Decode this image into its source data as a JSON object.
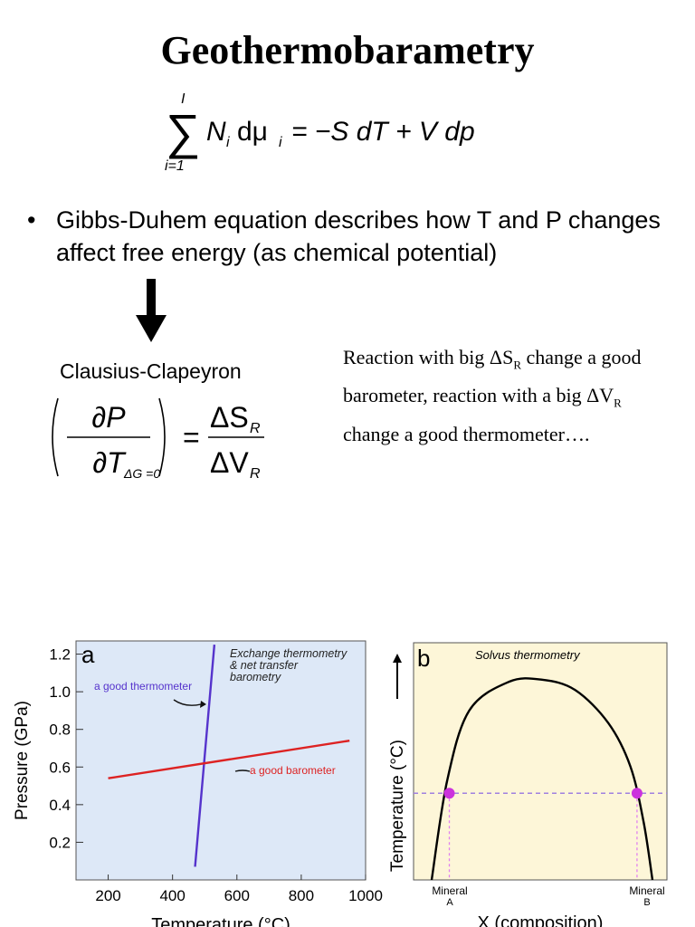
{
  "title": "Geothermobarametry",
  "gibbs_duhem_equation": {
    "sum_upper": "I",
    "sum_lower": "i=1",
    "body": "N",
    "body_sub": "i",
    "d": "dμ",
    "mu_sub": "i",
    "rhs": "= −S dT + V dp"
  },
  "bullet": {
    "marker": "•",
    "text": "Gibbs-Duhem equation describes how T and P changes affect free energy (as chemical potential)"
  },
  "clausius_clapeyron": {
    "label": "Clausius-Clapeyron",
    "partial_p": "∂P",
    "partial_t": "∂T",
    "condition": "ΔG =0",
    "equals": "=",
    "numerator": "ΔS",
    "numerator_sub": "R",
    "denominator": "ΔV",
    "denominator_sub": "R"
  },
  "side_note": {
    "part1": "Reaction with big ΔS",
    "sub1": "R",
    "part2": " change a good barometer, reaction with a big ΔV",
    "sub2": "R",
    "part3": " change a good thermometer…."
  },
  "chart_data": [
    {
      "type": "line",
      "panel_label": "a",
      "title": "Exchange thermometry & net transfer barometry",
      "title_lines": [
        "Exchange thermometry",
        "& net transfer",
        "barometry"
      ],
      "xlabel": "Temperature (°C)",
      "ylabel": "Pressure (GPa)",
      "xlim": [
        100,
        1000
      ],
      "ylim": [
        0,
        1.27
      ],
      "xticks": [
        "200",
        "400",
        "600",
        "800",
        "1000"
      ],
      "yticks": [
        "0.2",
        "0.4",
        "0.6",
        "0.8",
        "1.0",
        "1.2"
      ],
      "background": "#dde8f7",
      "series": [
        {
          "name": "a good thermometer",
          "color": "#5533cc",
          "x": [
            470,
            530
          ],
          "y": [
            0.07,
            1.25
          ]
        },
        {
          "name": "a good barometer",
          "color": "#dd2222",
          "x": [
            200,
            950
          ],
          "y": [
            0.54,
            0.74
          ]
        }
      ]
    },
    {
      "type": "line",
      "panel_label": "b",
      "title": "Solvus thermometry",
      "xlabel": "X (composition)",
      "ylabel": "Temperature (°C)",
      "end_labels": [
        "Mineral A",
        "Mineral B"
      ],
      "background": "#fdf6d8",
      "series": [
        {
          "name": "solvus",
          "color": "#000000",
          "x": [
            0.0,
            0.07,
            0.17,
            0.35,
            0.5,
            0.65,
            0.8,
            0.9,
            0.96,
            1.0
          ],
          "y": [
            0.0,
            0.48,
            0.82,
            0.96,
            0.97,
            0.92,
            0.76,
            0.55,
            0.28,
            0.0
          ]
        }
      ],
      "tie_line": {
        "color": "#a080e0",
        "y": 0.42,
        "x": [
          0.0,
          1.0
        ]
      },
      "points": [
        {
          "x": 0.08,
          "y": 0.42,
          "color": "#cc33dd"
        },
        {
          "x": 0.93,
          "y": 0.42,
          "color": "#cc33dd"
        }
      ]
    }
  ]
}
